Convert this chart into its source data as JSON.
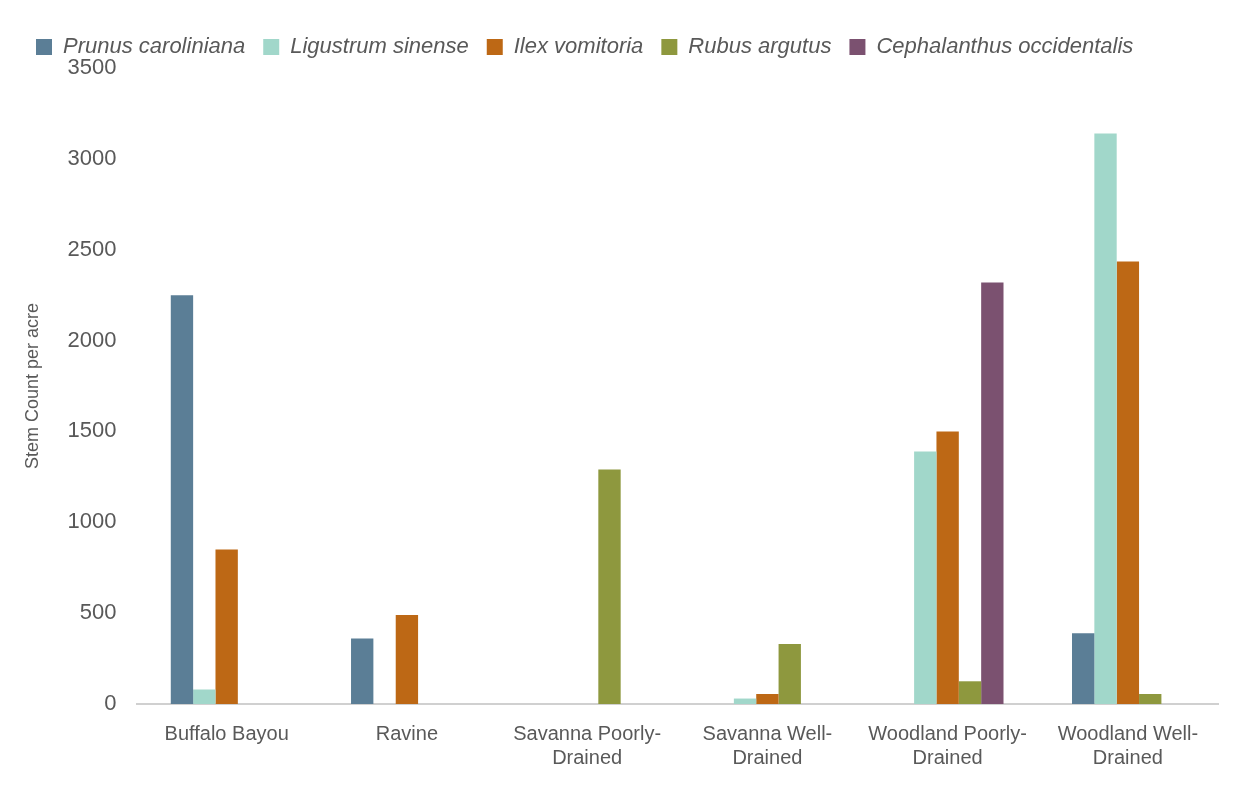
{
  "chart_data": {
    "type": "bar",
    "ylabel": "Stem Count per acre",
    "categories": [
      "Buffalo Bayou",
      "Ravine",
      "Savanna Poorly-Drained",
      "Savanna Well-Drained",
      "Woodland Poorly-Drained",
      "Woodland Well-Drained"
    ],
    "series": [
      {
        "name": "Prunus caroliniana",
        "color": "#5b7e96",
        "values": [
          2250,
          360,
          0,
          0,
          0,
          390
        ]
      },
      {
        "name": "Ligustrum sinense",
        "color": "#a1d7ca",
        "values": [
          80,
          0,
          0,
          30,
          1390,
          3140
        ]
      },
      {
        "name": "Ilex vomitoria",
        "color": "#bd6815",
        "values": [
          850,
          490,
          0,
          55,
          1500,
          2435
        ]
      },
      {
        "name": "Rubus argutus",
        "color": "#8e983e",
        "values": [
          0,
          0,
          1290,
          330,
          125,
          55
        ]
      },
      {
        "name": "Cephalanthus occidentalis",
        "color": "#7b5170",
        "values": [
          0,
          0,
          0,
          0,
          2320,
          0
        ]
      }
    ],
    "ylim": [
      0,
      3500
    ],
    "yticks": [
      0,
      500,
      1000,
      1500,
      2000,
      2500,
      3000,
      3500
    ],
    "grid": false,
    "legend": "top left"
  }
}
